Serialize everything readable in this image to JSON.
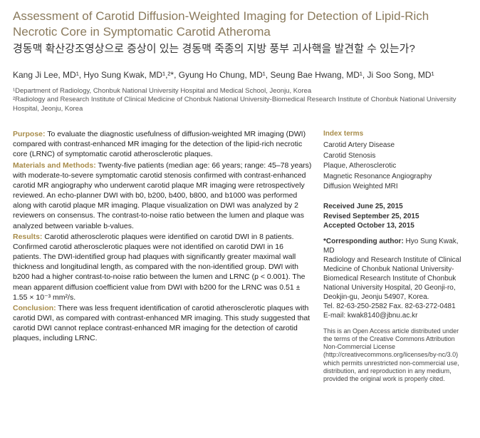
{
  "title": {
    "en": "Assessment of Carotid Diffusion-Weighted Imaging for Detection of Lipid-Rich Necrotic Core in Symptomatic Carotid Atheroma",
    "ko": "경동맥 확산강조영상으로 증상이 있는 경동맥 죽종의 지방 풍부 괴사핵을 발견할 수 있는가?",
    "color_en": "#8a7a5c",
    "color_ko": "#333333"
  },
  "authors": "Kang Ji Lee, MD¹, Hyo Sung Kwak, MD¹,²*, Gyung Ho Chung, MD¹, Seung Bae Hwang, MD¹, Ji Soo Song, MD¹",
  "affiliations": [
    "¹Department of Radiology, Chonbuk National University Hospital and Medical School, Jeonju, Korea",
    "²Radiology and Research Institute of Clinical Medicine of Chonbuk National University-Biomedical Research Institute of Chonbuk National University Hospital, Jeonju, Korea"
  ],
  "abstract": {
    "label_color": "#a88c4a",
    "purpose": {
      "label": "Purpose:",
      "text": " To evaluate the diagnostic usefulness of diffusion-weighted MR imaging (DWI) compared with contrast-enhanced MR imaging for the detection of the lipid-rich necrotic core (LRNC) of symptomatic carotid atherosclerotic plaques."
    },
    "methods": {
      "label": "Materials and Methods:",
      "text": " Twenty-five patients (median age: 66 years; range: 45–78 years) with moderate-to-severe symptomatic carotid stenosis confirmed with contrast-enhanced carotid MR angiography who underwent carotid plaque MR imaging were retrospectively reviewed. An echo-planner DWI with b0, b200, b400, b800, and b1000 was performed along with carotid plaque MR imaging. Plaque visualization on DWI was analyzed by 2 reviewers on consensus. The contrast-to-noise ratio between the lumen and plaque was analyzed between variable b-values."
    },
    "results": {
      "label": "Results:",
      "text": " Carotid atherosclerotic plaques were identified on carotid DWI in 8 patients. Confirmed carotid atherosclerotic plaques were not identified on carotid DWI in 16 patients. The DWI-identified group had plaques with significantly greater maximal wall thickness and longitudinal length, as compared with the non-identified group. DWI with b200 had a higher contrast-to-noise ratio between the lumen and LRNC (p < 0.001). The mean apparent diffusion coefficient value from DWI with b200 for the LRNC was 0.51 ± 1.55 × 10⁻³ mm²/s."
    },
    "conclusion": {
      "label": "Conclusion:",
      "text": " There was less frequent identification of carotid atherosclerotic plaques with carotid DWI, as compared with contrast-enhanced MR imaging. This study suggested that carotid DWI cannot replace contrast-enhanced MR imaging for the detection of carotid plaques, including LRNC."
    }
  },
  "index": {
    "head": "Index terms",
    "head_color": "#a88c4a",
    "terms": [
      "Carotid Artery Disease",
      "Carotid Stenosis",
      "Plaque, Atherosclerotic",
      "Magnetic Resonance Angiography",
      "Diffusion Weighted MRI"
    ]
  },
  "dates": {
    "received": {
      "label": "Received",
      "value": " June 25, 2015"
    },
    "revised": {
      "label": "Revised",
      "value": " September 25, 2015"
    },
    "accepted": {
      "label": "Accepted",
      "value": " October 13, 2015"
    }
  },
  "corresponding": {
    "label": "*Corresponding author:",
    "name": " Hyo Sung Kwak, MD",
    "address": "Radiology and Research Institute of Clinical Medicine of Chonbuk National University-Biomedical Research Institute of Chonbuk National University Hospital, 20 Geonji-ro, Deokjin-gu, Jeonju 54907, Korea.",
    "tel": "Tel. 82-63-250-2582  Fax. 82-63-272-0481",
    "email": "E-mail: kwak8140@jbnu.ac.kr"
  },
  "openaccess": "This is an Open Access article distributed under the terms of the Creative Commons Attribution Non-Commercial License (http://creativecommons.org/licenses/by-nc/3.0) which permits unrestricted non-commercial use, distribution, and reproduction in any medium, provided the original work is properly cited."
}
